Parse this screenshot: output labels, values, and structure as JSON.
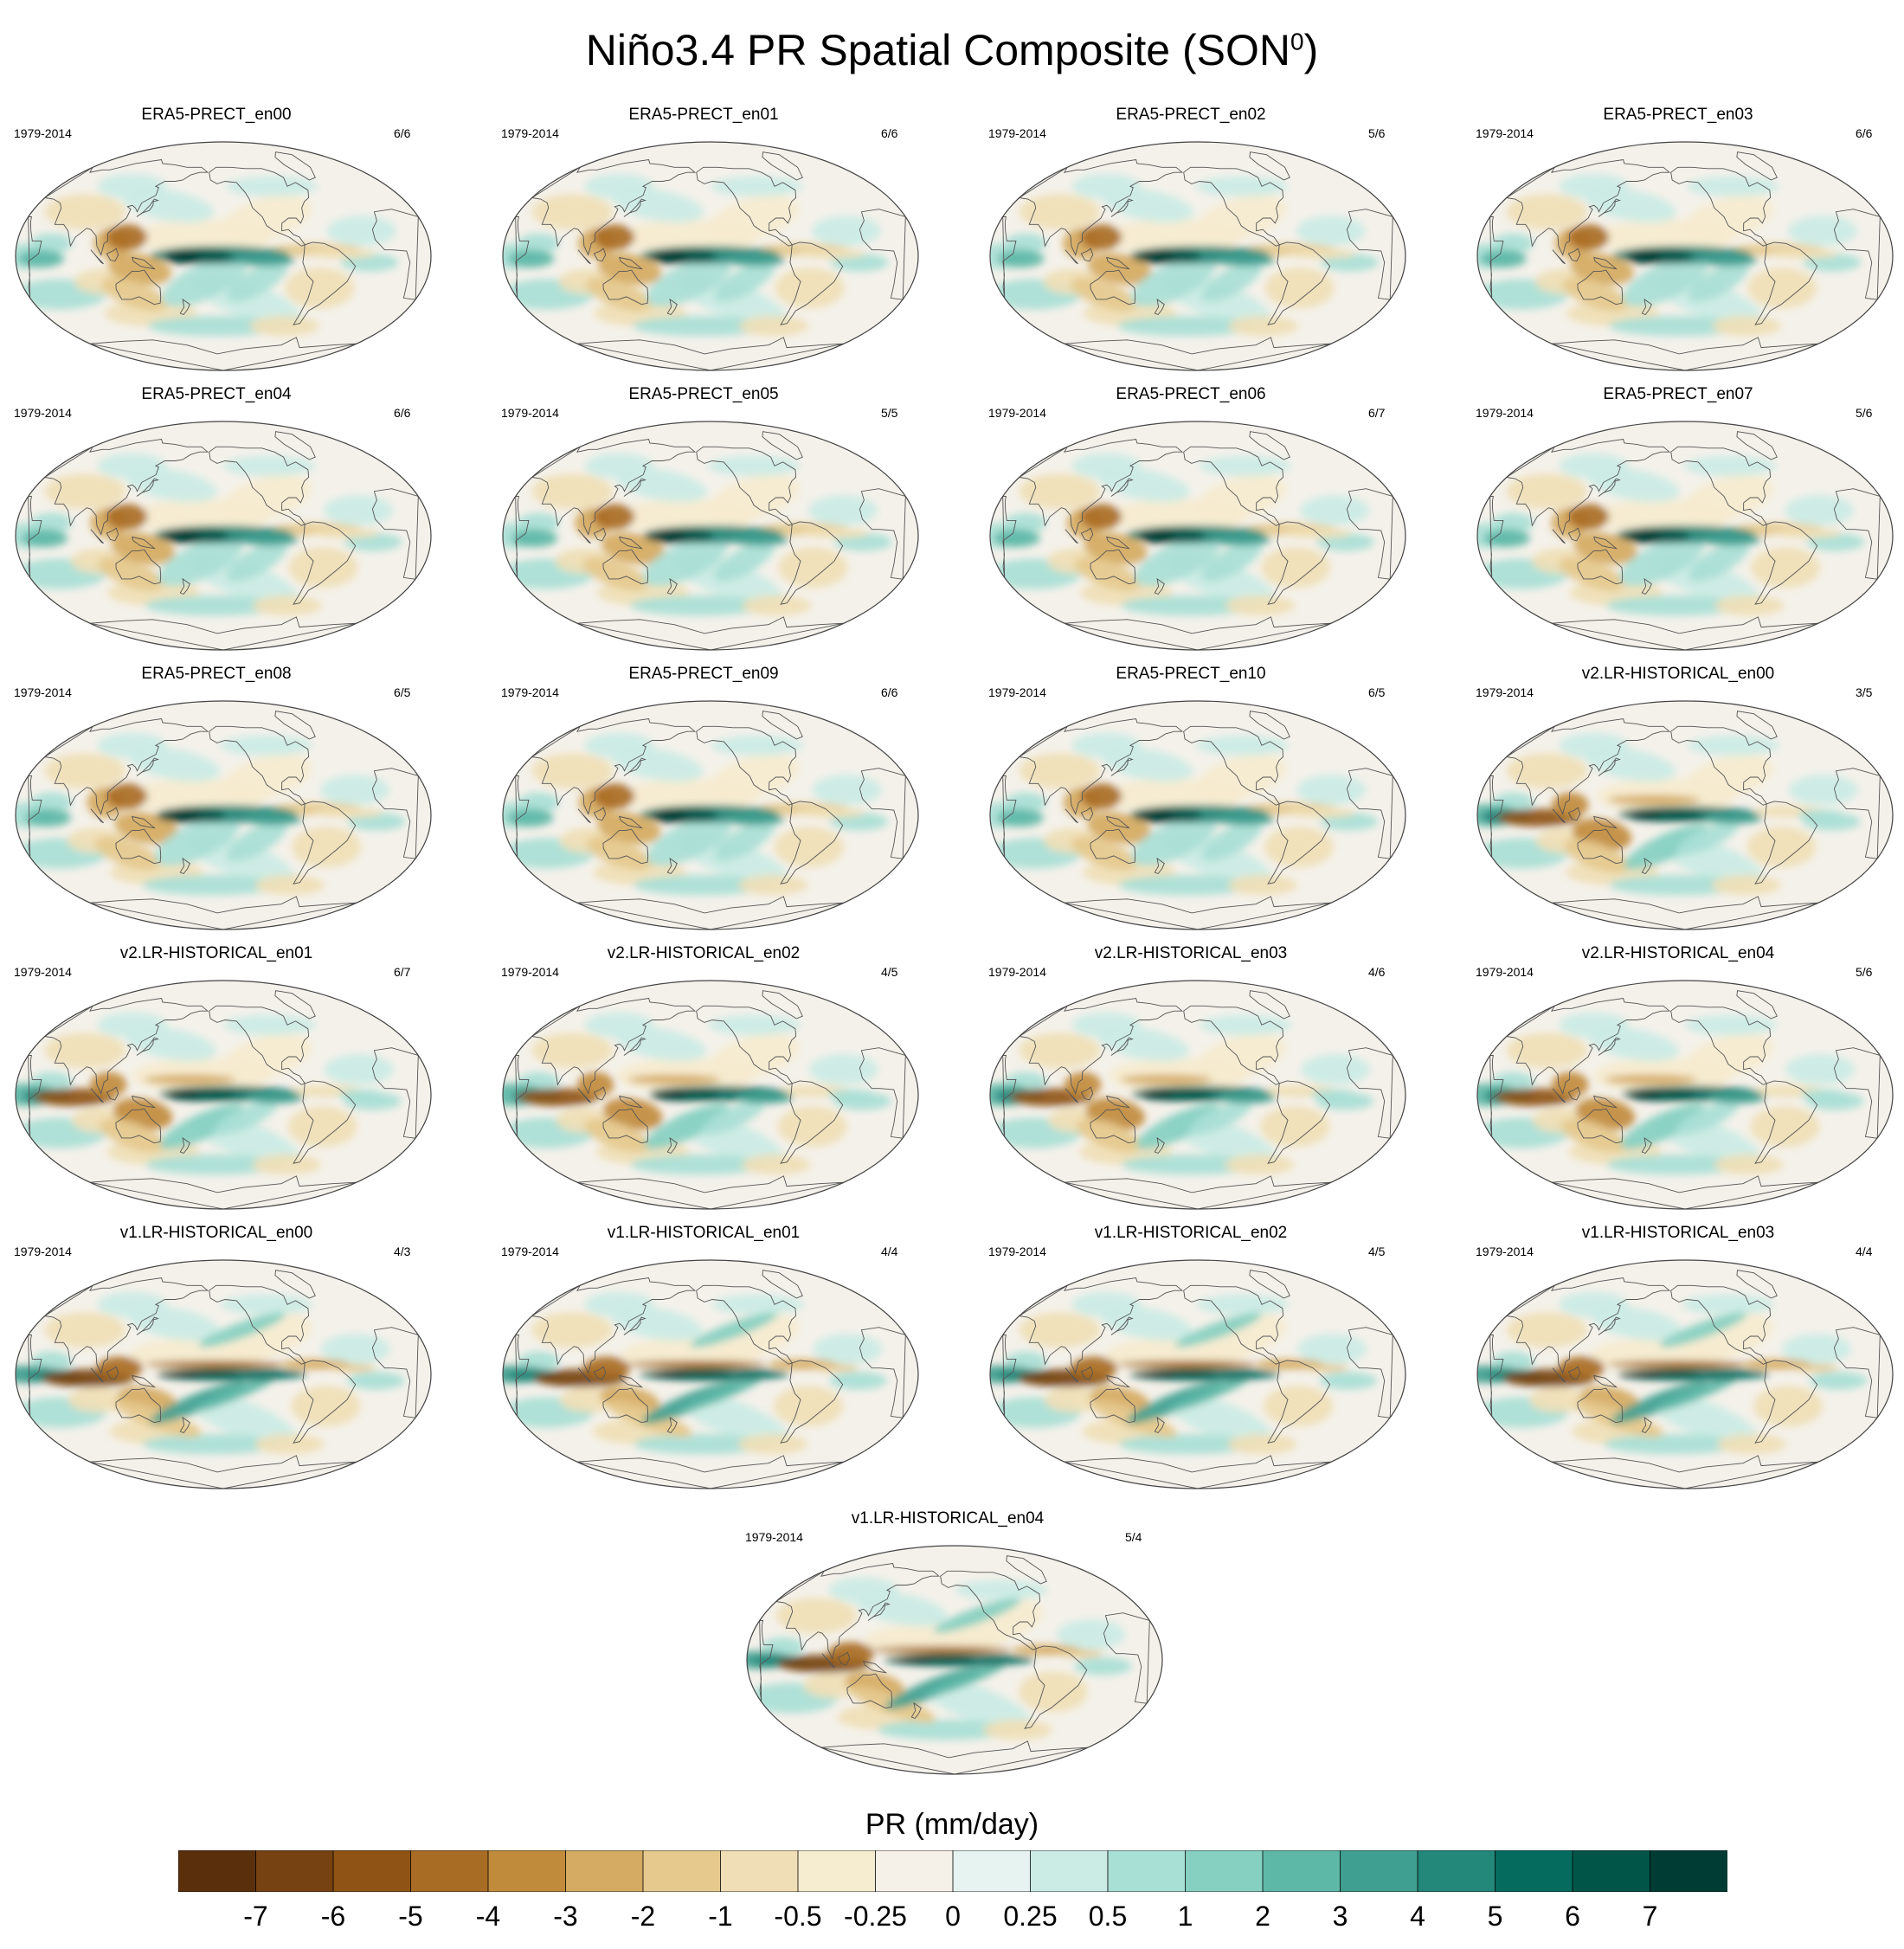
{
  "title_main": "Niño3.4 PR Spatial Composite (SON",
  "title_sup": "0",
  "title_close": ")",
  "colors": {
    "land_outline": "#555555",
    "ocean_bg": "#f4f1ea",
    "dry_strong": "#6e3f10",
    "wet_strong": "#00473e"
  },
  "panels": [
    {
      "title": "ERA5-PRECT_en00",
      "period": "1979-2014",
      "count": "6/6",
      "family": "era5"
    },
    {
      "title": "ERA5-PRECT_en01",
      "period": "1979-2014",
      "count": "6/6",
      "family": "era5"
    },
    {
      "title": "ERA5-PRECT_en02",
      "period": "1979-2014",
      "count": "5/6",
      "family": "era5"
    },
    {
      "title": "ERA5-PRECT_en03",
      "period": "1979-2014",
      "count": "6/6",
      "family": "era5"
    },
    {
      "title": "ERA5-PRECT_en04",
      "period": "1979-2014",
      "count": "6/6",
      "family": "era5"
    },
    {
      "title": "ERA5-PRECT_en05",
      "period": "1979-2014",
      "count": "5/5",
      "family": "era5"
    },
    {
      "title": "ERA5-PRECT_en06",
      "period": "1979-2014",
      "count": "6/7",
      "family": "era5"
    },
    {
      "title": "ERA5-PRECT_en07",
      "period": "1979-2014",
      "count": "5/6",
      "family": "era5"
    },
    {
      "title": "ERA5-PRECT_en08",
      "period": "1979-2014",
      "count": "6/5",
      "family": "era5"
    },
    {
      "title": "ERA5-PRECT_en09",
      "period": "1979-2014",
      "count": "6/6",
      "family": "era5"
    },
    {
      "title": "ERA5-PRECT_en10",
      "period": "1979-2014",
      "count": "6/5",
      "family": "era5"
    },
    {
      "title": "v2.LR-HISTORICAL_en00",
      "period": "1979-2014",
      "count": "3/5",
      "family": "v2"
    },
    {
      "title": "v2.LR-HISTORICAL_en01",
      "period": "1979-2014",
      "count": "6/7",
      "family": "v2"
    },
    {
      "title": "v2.LR-HISTORICAL_en02",
      "period": "1979-2014",
      "count": "4/5",
      "family": "v2"
    },
    {
      "title": "v2.LR-HISTORICAL_en03",
      "period": "1979-2014",
      "count": "4/6",
      "family": "v2"
    },
    {
      "title": "v2.LR-HISTORICAL_en04",
      "period": "1979-2014",
      "count": "5/6",
      "family": "v2"
    },
    {
      "title": "v1.LR-HISTORICAL_en00",
      "period": "1979-2014",
      "count": "4/3",
      "family": "v1"
    },
    {
      "title": "v1.LR-HISTORICAL_en01",
      "period": "1979-2014",
      "count": "4/4",
      "family": "v1"
    },
    {
      "title": "v1.LR-HISTORICAL_en02",
      "period": "1979-2014",
      "count": "4/5",
      "family": "v1"
    },
    {
      "title": "v1.LR-HISTORICAL_en03",
      "period": "1979-2014",
      "count": "4/4",
      "family": "v1"
    },
    {
      "title": "v1.LR-HISTORICAL_en04",
      "period": "1979-2014",
      "count": "5/4",
      "family": "v1"
    }
  ],
  "colorbar": {
    "label": "PR (mm/day)",
    "colors": [
      "#5a300c",
      "#764211",
      "#8f5415",
      "#a96c24",
      "#c18b3c",
      "#d5aa62",
      "#e5c98d",
      "#f0dfb6",
      "#f6eccf",
      "#f5f1e8",
      "#e6f3f1",
      "#cbebe5",
      "#a9e0d6",
      "#86d0c2",
      "#5eb8a8",
      "#3f9f90",
      "#23877a",
      "#056b5e",
      "#005448",
      "#003c33"
    ],
    "tick_labels": [
      "-7",
      "-6",
      "-5",
      "-4",
      "-3",
      "-2",
      "-1",
      "-0.5",
      "-0.25",
      "0",
      "0.25",
      "0.5",
      "1",
      "2",
      "3",
      "4",
      "5",
      "6",
      "7"
    ]
  }
}
